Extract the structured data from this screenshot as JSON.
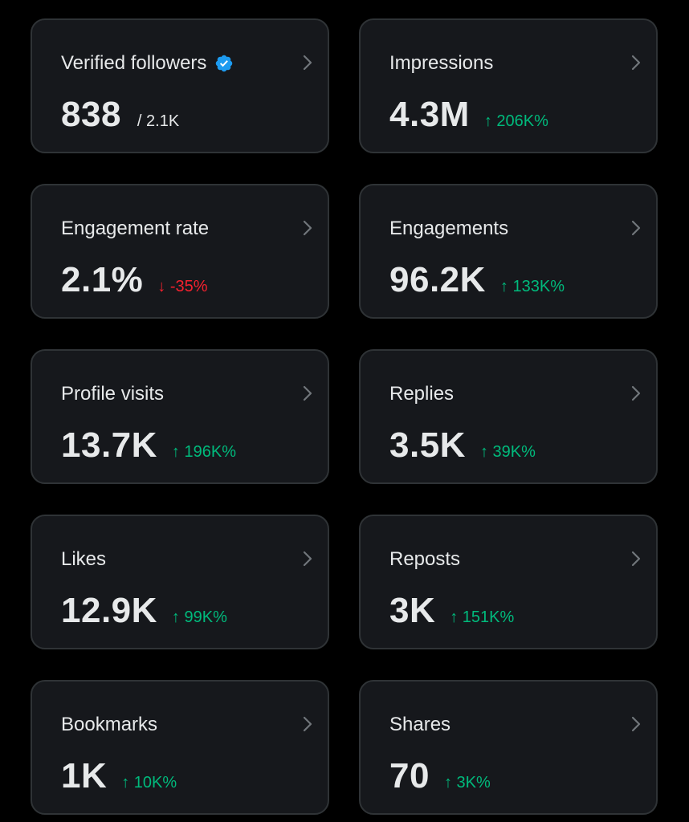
{
  "cards": [
    {
      "title": "Verified followers",
      "value": "838",
      "sub": "/ 2.1K",
      "change": "",
      "direction": "none",
      "verified": true
    },
    {
      "title": "Impressions",
      "value": "4.3M",
      "sub": "",
      "change": "↑ 206K%",
      "direction": "up"
    },
    {
      "title": "Engagement rate",
      "value": "2.1%",
      "sub": "",
      "change": "↓ -35%",
      "direction": "down"
    },
    {
      "title": "Engagements",
      "value": "96.2K",
      "sub": "",
      "change": "↑ 133K%",
      "direction": "up"
    },
    {
      "title": "Profile visits",
      "value": "13.7K",
      "sub": "",
      "change": "↑ 196K%",
      "direction": "up"
    },
    {
      "title": "Replies",
      "value": "3.5K",
      "sub": "",
      "change": "↑ 39K%",
      "direction": "up"
    },
    {
      "title": "Likes",
      "value": "12.9K",
      "sub": "",
      "change": "↑ 99K%",
      "direction": "up"
    },
    {
      "title": "Reposts",
      "value": "3K",
      "sub": "",
      "change": "↑ 151K%",
      "direction": "up"
    },
    {
      "title": "Bookmarks",
      "value": "1K",
      "sub": "",
      "change": "↑ 10K%",
      "direction": "up"
    },
    {
      "title": "Shares",
      "value": "70",
      "sub": "",
      "change": "↑ 3K%",
      "direction": "up"
    }
  ],
  "icons": {
    "verified": "verified-badge-icon",
    "chevron": "chevron-right-icon"
  },
  "colors": {
    "background": "#000000",
    "card": "#16181c",
    "border": "#2f3336",
    "text": "#e7e9ea",
    "up": "#00ba7c",
    "down": "#f4212e",
    "verified": "#1d9bf0",
    "chevron": "#71767b"
  }
}
